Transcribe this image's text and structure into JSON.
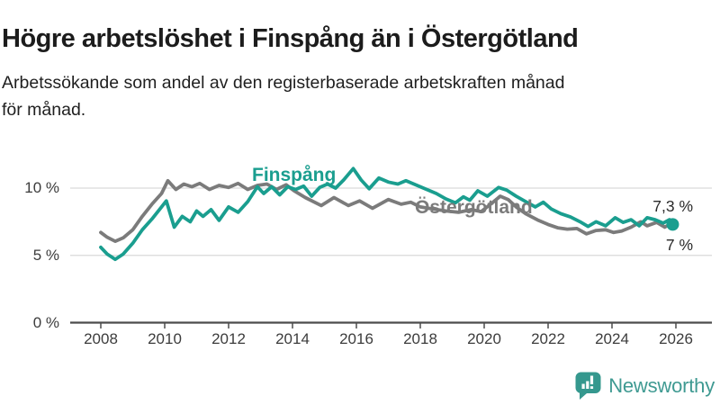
{
  "header": {
    "title": "Högre arbetslöshet i Finspång än i Östergötland",
    "subtitle_line1": "Arbetssökande som andel av den registerbaserade arbetskraften månad",
    "subtitle_line2": "för månad."
  },
  "chart_data": {
    "type": "line",
    "title": "Högre arbetslöshet i Finspång än i Östergötland",
    "subtitle": "Arbetssökande som andel av den registerbaserade arbetskraften månad för månad.",
    "unit": "%",
    "grid": "horizontal",
    "legend_position": "inline-labels",
    "xlim": [
      2007.9,
      2026.4
    ],
    "ylim": [
      0,
      12.5
    ],
    "x_ticks": [
      {
        "v": 2008,
        "label": "2008"
      },
      {
        "v": 2010,
        "label": "2010"
      },
      {
        "v": 2012,
        "label": "2012"
      },
      {
        "v": 2014,
        "label": "2014"
      },
      {
        "v": 2016,
        "label": "2016"
      },
      {
        "v": 2018,
        "label": "2018"
      },
      {
        "v": 2020,
        "label": "2020"
      },
      {
        "v": 2022,
        "label": "2022"
      },
      {
        "v": 2024,
        "label": "2024"
      },
      {
        "v": 2026,
        "label": "2026"
      }
    ],
    "y_ticks": [
      {
        "v": 0,
        "label": "0 %"
      },
      {
        "v": 5,
        "label": "5 %"
      },
      {
        "v": 10,
        "label": "10 %"
      }
    ],
    "colors": {
      "grid": "#d9d9d9",
      "axis": "#4c4c4c",
      "end_label_text": "#2a2a2a"
    },
    "series": [
      {
        "name": "Finspång",
        "color": "#1a9e8f",
        "end_label": "7,3 %",
        "end_value": 7.3,
        "end_dot": true,
        "points": [
          [
            2008.0,
            5.6
          ],
          [
            2008.2,
            5.1
          ],
          [
            2008.45,
            4.7
          ],
          [
            2008.7,
            5.1
          ],
          [
            2009.0,
            5.9
          ],
          [
            2009.3,
            6.9
          ],
          [
            2009.6,
            7.7
          ],
          [
            2009.9,
            8.6
          ],
          [
            2010.05,
            9.05
          ],
          [
            2010.3,
            7.1
          ],
          [
            2010.55,
            7.9
          ],
          [
            2010.8,
            7.5
          ],
          [
            2011.0,
            8.3
          ],
          [
            2011.2,
            7.9
          ],
          [
            2011.45,
            8.4
          ],
          [
            2011.7,
            7.6
          ],
          [
            2012.0,
            8.6
          ],
          [
            2012.3,
            8.2
          ],
          [
            2012.6,
            9.0
          ],
          [
            2012.9,
            10.1
          ],
          [
            2013.1,
            9.6
          ],
          [
            2013.35,
            10.1
          ],
          [
            2013.6,
            9.5
          ],
          [
            2013.85,
            10.1
          ],
          [
            2014.1,
            9.9
          ],
          [
            2014.35,
            10.15
          ],
          [
            2014.6,
            9.4
          ],
          [
            2014.85,
            10.05
          ],
          [
            2015.1,
            10.3
          ],
          [
            2015.35,
            10.0
          ],
          [
            2015.6,
            10.6
          ],
          [
            2015.9,
            11.45
          ],
          [
            2016.15,
            10.6
          ],
          [
            2016.4,
            9.95
          ],
          [
            2016.7,
            10.75
          ],
          [
            2017.0,
            10.45
          ],
          [
            2017.3,
            10.3
          ],
          [
            2017.55,
            10.55
          ],
          [
            2017.8,
            10.3
          ],
          [
            2018.1,
            10.0
          ],
          [
            2018.5,
            9.6
          ],
          [
            2018.8,
            9.2
          ],
          [
            2019.1,
            8.9
          ],
          [
            2019.35,
            9.35
          ],
          [
            2019.55,
            9.1
          ],
          [
            2019.8,
            9.8
          ],
          [
            2020.1,
            9.4
          ],
          [
            2020.45,
            10.05
          ],
          [
            2020.7,
            9.85
          ],
          [
            2021.0,
            9.4
          ],
          [
            2021.3,
            9.0
          ],
          [
            2021.6,
            8.6
          ],
          [
            2021.85,
            8.95
          ],
          [
            2022.1,
            8.45
          ],
          [
            2022.4,
            8.1
          ],
          [
            2022.7,
            7.85
          ],
          [
            2023.0,
            7.5
          ],
          [
            2023.25,
            7.15
          ],
          [
            2023.5,
            7.5
          ],
          [
            2023.8,
            7.2
          ],
          [
            2024.1,
            7.8
          ],
          [
            2024.35,
            7.45
          ],
          [
            2024.6,
            7.65
          ],
          [
            2024.85,
            7.2
          ],
          [
            2025.1,
            7.8
          ],
          [
            2025.35,
            7.65
          ],
          [
            2025.6,
            7.4
          ],
          [
            2025.8,
            7.65
          ],
          [
            2025.9,
            7.3
          ]
        ]
      },
      {
        "name": "Östergötland",
        "color": "#7b7b7b",
        "end_label": "7 %",
        "end_value": 7.0,
        "end_dot": false,
        "points": [
          [
            2008.0,
            6.7
          ],
          [
            2008.2,
            6.35
          ],
          [
            2008.45,
            6.05
          ],
          [
            2008.7,
            6.3
          ],
          [
            2009.0,
            6.9
          ],
          [
            2009.3,
            7.9
          ],
          [
            2009.6,
            8.8
          ],
          [
            2009.9,
            9.6
          ],
          [
            2010.1,
            10.55
          ],
          [
            2010.35,
            9.9
          ],
          [
            2010.6,
            10.3
          ],
          [
            2010.85,
            10.1
          ],
          [
            2011.1,
            10.35
          ],
          [
            2011.4,
            9.9
          ],
          [
            2011.7,
            10.2
          ],
          [
            2012.0,
            10.05
          ],
          [
            2012.3,
            10.35
          ],
          [
            2012.6,
            9.9
          ],
          [
            2012.9,
            10.2
          ],
          [
            2013.2,
            10.3
          ],
          [
            2013.5,
            9.9
          ],
          [
            2013.8,
            10.25
          ],
          [
            2014.05,
            9.8
          ],
          [
            2014.4,
            9.3
          ],
          [
            2014.9,
            8.7
          ],
          [
            2015.3,
            9.3
          ],
          [
            2015.75,
            8.7
          ],
          [
            2016.1,
            9.05
          ],
          [
            2016.5,
            8.5
          ],
          [
            2017.0,
            9.15
          ],
          [
            2017.4,
            8.8
          ],
          [
            2017.7,
            8.95
          ],
          [
            2018.0,
            8.6
          ],
          [
            2018.4,
            8.45
          ],
          [
            2018.8,
            8.3
          ],
          [
            2019.2,
            8.2
          ],
          [
            2019.6,
            8.4
          ],
          [
            2019.9,
            8.25
          ],
          [
            2020.2,
            8.8
          ],
          [
            2020.5,
            9.4
          ],
          [
            2020.75,
            9.15
          ],
          [
            2021.0,
            8.6
          ],
          [
            2021.3,
            8.1
          ],
          [
            2021.7,
            7.6
          ],
          [
            2022.0,
            7.3
          ],
          [
            2022.3,
            7.05
          ],
          [
            2022.6,
            6.95
          ],
          [
            2022.9,
            7.0
          ],
          [
            2023.2,
            6.6
          ],
          [
            2023.5,
            6.85
          ],
          [
            2023.8,
            6.9
          ],
          [
            2024.05,
            6.7
          ],
          [
            2024.3,
            6.8
          ],
          [
            2024.6,
            7.1
          ],
          [
            2024.9,
            7.5
          ],
          [
            2025.1,
            7.2
          ],
          [
            2025.4,
            7.45
          ],
          [
            2025.65,
            7.1
          ],
          [
            2025.8,
            7.3
          ],
          [
            2025.9,
            7.0
          ]
        ]
      }
    ]
  },
  "footer": {
    "brand": "Newsworthy",
    "logo_icon": "bar-chart-speech-bubble-icon",
    "icon_color": "#35988e",
    "brand_color": "#3f9a92"
  }
}
